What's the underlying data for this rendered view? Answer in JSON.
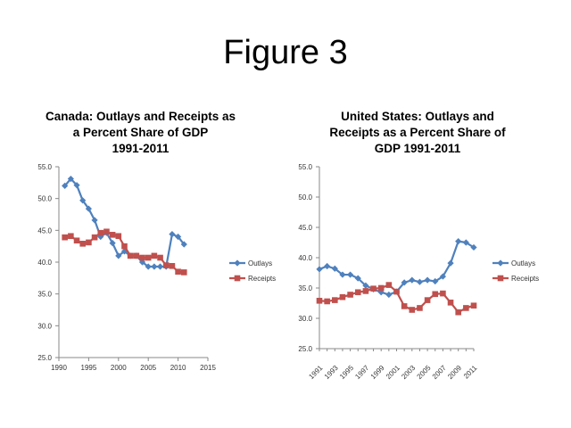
{
  "slide": {
    "title": "Figure 3"
  },
  "colors": {
    "outlays": "#4f81bd",
    "receipts": "#c0504d",
    "axis": "#888888"
  },
  "chart_data": [
    {
      "type": "line",
      "title_lines": [
        "Canada: Outlays and Receipts as",
        "a Percent Share of GDP",
        "1991-2011"
      ],
      "x": [
        1991,
        1992,
        1993,
        1994,
        1995,
        1996,
        1997,
        1998,
        1999,
        2000,
        2001,
        2002,
        2003,
        2004,
        2005,
        2006,
        2007,
        2008,
        2009,
        2010,
        2011
      ],
      "series": [
        {
          "name": "Outlays",
          "marker": "diamond",
          "values": [
            52.0,
            53.1,
            52.1,
            49.7,
            48.4,
            46.6,
            44.0,
            44.6,
            43.0,
            41.0,
            41.7,
            41.0,
            41.0,
            40.0,
            39.3,
            39.3,
            39.3,
            39.3,
            44.4,
            44.0,
            42.8
          ]
        },
        {
          "name": "Receipts",
          "marker": "square",
          "values": [
            43.9,
            44.1,
            43.4,
            42.9,
            43.1,
            43.9,
            44.6,
            44.8,
            44.3,
            44.1,
            42.5,
            41.0,
            41.0,
            40.7,
            40.7,
            41.0,
            40.7,
            39.5,
            39.4,
            38.5,
            38.4
          ]
        }
      ],
      "ylim": [
        25,
        55
      ],
      "yticks": [
        "25.0",
        "30.0",
        "35.0",
        "40.0",
        "45.0",
        "50.0",
        "55.0"
      ],
      "xlim": [
        1990,
        2015
      ],
      "xticks": [
        "1990",
        "1995",
        "2000",
        "2005",
        "2010",
        "2015"
      ],
      "legend": "right"
    },
    {
      "type": "line",
      "title_lines": [
        "United States: Outlays and",
        "Receipts as a Percent Share of",
        "GDP 1991-2011"
      ],
      "x": [
        1991,
        1992,
        1993,
        1994,
        1995,
        1996,
        1997,
        1998,
        1999,
        2000,
        2001,
        2002,
        2003,
        2004,
        2005,
        2006,
        2007,
        2008,
        2009,
        2010,
        2011
      ],
      "series": [
        {
          "name": "Outlays",
          "marker": "diamond",
          "values": [
            38.1,
            38.6,
            38.2,
            37.2,
            37.2,
            36.6,
            35.4,
            34.8,
            34.3,
            33.9,
            34.4,
            35.9,
            36.3,
            36.0,
            36.3,
            36.1,
            36.9,
            39.1,
            42.7,
            42.5,
            41.7
          ]
        },
        {
          "name": "Receipts",
          "marker": "square",
          "values": [
            32.9,
            32.8,
            33.0,
            33.5,
            33.9,
            34.3,
            34.5,
            34.9,
            35.0,
            35.5,
            34.4,
            32.0,
            31.4,
            31.7,
            33.0,
            34.0,
            34.1,
            32.6,
            31.0,
            31.7,
            32.1
          ]
        }
      ],
      "ylim": [
        25,
        55
      ],
      "yticks": [
        "25.0",
        "30.0",
        "35.0",
        "40.0",
        "45.0",
        "50.0",
        "55.0"
      ],
      "xticks": [
        "1991",
        "1993",
        "1995",
        "1997",
        "1999",
        "2001",
        "2003",
        "2005",
        "2007",
        "2009",
        "2011"
      ],
      "legend": "right"
    }
  ]
}
